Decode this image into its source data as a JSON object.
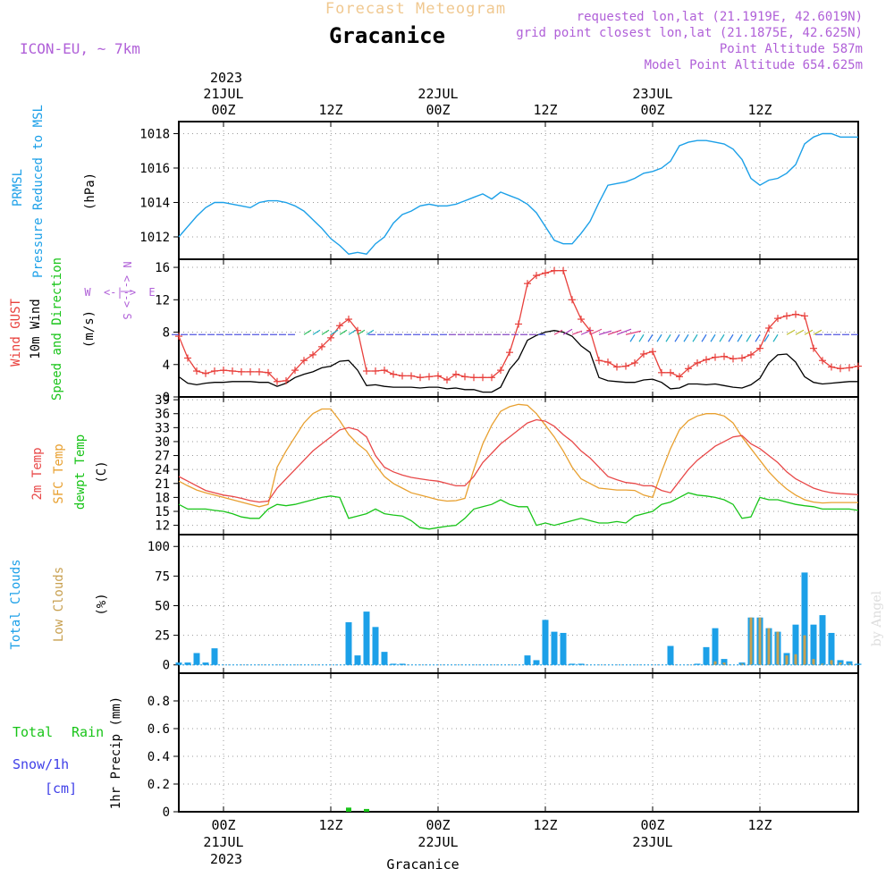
{
  "header": {
    "top_title": "Forecast Meteogram",
    "location": "Gracanice",
    "model": "ICON-EU, ~ 7km",
    "requested": "requested lon,lat (21.1919E, 42.6019N)",
    "grid_point": "grid point closest lon,lat (21.1875E, 42.625N)",
    "point_altitude": "Point Altitude 587m",
    "model_altitude": "Model Point Altitude 654.625m",
    "bottom_label": "Gracanice",
    "watermark": "by Angel"
  },
  "time_axis": {
    "top_year": "2023",
    "bottom_year": "2023",
    "ticks": [
      {
        "t": 0,
        "label": "00Z",
        "date": "21JUL"
      },
      {
        "t": 12,
        "label": "12Z",
        "date": ""
      },
      {
        "t": 24,
        "label": "00Z",
        "date": "22JUL"
      },
      {
        "t": 36,
        "label": "12Z",
        "date": ""
      },
      {
        "t": 48,
        "label": "00Z",
        "date": "23JUL"
      },
      {
        "t": 60,
        "label": "12Z",
        "date": ""
      }
    ],
    "range_hours": [
      -5,
      71
    ]
  },
  "panel_labels": {
    "pressure": [
      "PRMSL",
      "Pressure Reduced to MSL",
      "(hPa)"
    ],
    "wind": [
      "Wind GUST",
      "10m Wind",
      "Speed and Direction",
      "(m/s)"
    ],
    "compass": {
      "w": "W",
      "e": "E",
      "n": "N",
      "s": "S",
      "arrows": "<-|->"
    },
    "temp": [
      "2m Temp",
      "SFC Temp",
      "dewpt Temp",
      "(C)"
    ],
    "clouds": [
      "Total Clouds",
      "Low Clouds",
      "(%)"
    ],
    "precip": [
      "Total",
      "Rain",
      "Snow/1h",
      "[cm]",
      "1hr Precip (mm)"
    ]
  },
  "colors": {
    "pressure": "#1ca0e8",
    "gust": "#e8403c",
    "wind": "#000000",
    "temp2m": "#e84848",
    "sfc": "#e8a030",
    "dewpt": "#18c418",
    "total_clouds": "#1ca0e8",
    "low_clouds": "#c8a050",
    "rain": "#18c418",
    "snow": "#4040e8",
    "header_purple": "#b060d8",
    "header_gold": "#f0c890"
  },
  "chart_data": [
    {
      "type": "line",
      "name": "PRMSL Pressure Reduced to MSL",
      "ylabel": "(hPa)",
      "ylim": [
        1010.7,
        1018.7
      ],
      "yticks": [
        1012,
        1014,
        1016,
        1018
      ],
      "x": [
        -5,
        -4,
        -3,
        -2,
        -1,
        0,
        1,
        2,
        3,
        4,
        5,
        6,
        7,
        8,
        9,
        10,
        11,
        12,
        13,
        14,
        15,
        16,
        17,
        18,
        19,
        20,
        21,
        22,
        23,
        24,
        25,
        26,
        27,
        28,
        29,
        30,
        31,
        32,
        33,
        34,
        35,
        36,
        37,
        38,
        39,
        40,
        41,
        42,
        43,
        44,
        45,
        46,
        47,
        48,
        49,
        50,
        51,
        52,
        53,
        54,
        55,
        56,
        57,
        58,
        59,
        60,
        61,
        62,
        63,
        64,
        65,
        66,
        67,
        68,
        69,
        70,
        71
      ],
      "y": [
        1012.0,
        1012.6,
        1013.2,
        1013.7,
        1014.0,
        1014.0,
        1013.9,
        1013.8,
        1013.7,
        1014.0,
        1014.1,
        1014.1,
        1014.0,
        1013.8,
        1013.5,
        1013.0,
        1012.5,
        1011.9,
        1011.5,
        1011.0,
        1011.1,
        1011.0,
        1011.6,
        1012.0,
        1012.8,
        1013.3,
        1013.5,
        1013.8,
        1013.9,
        1013.8,
        1013.8,
        1013.9,
        1014.1,
        1014.3,
        1014.5,
        1014.2,
        1014.6,
        1014.4,
        1014.2,
        1013.9,
        1013.4,
        1012.6,
        1011.8,
        1011.6,
        1011.6,
        1012.2,
        1012.9,
        1014.0,
        1015.0,
        1015.1,
        1015.2,
        1015.4,
        1015.7,
        1015.8,
        1016.0,
        1016.4,
        1017.3,
        1017.5,
        1017.6,
        1017.6,
        1017.5,
        1017.4,
        1017.1,
        1016.5,
        1015.4,
        1015.0,
        1015.3,
        1015.4,
        1015.7,
        1016.2,
        1017.4,
        1017.8,
        1018.0,
        1018.0,
        1017.8,
        1017.8,
        1017.8
      ]
    },
    {
      "type": "line",
      "name": "Wind GUST / 10m Wind",
      "ylabel": "(m/s)",
      "ylim": [
        0,
        17
      ],
      "yticks": [
        0,
        4,
        8,
        12,
        16
      ],
      "x": [
        -5,
        -4,
        -3,
        -2,
        -1,
        0,
        1,
        2,
        3,
        4,
        5,
        6,
        7,
        8,
        9,
        10,
        11,
        12,
        13,
        14,
        15,
        16,
        17,
        18,
        19,
        20,
        21,
        22,
        23,
        24,
        25,
        26,
        27,
        28,
        29,
        30,
        31,
        32,
        33,
        34,
        35,
        36,
        37,
        38,
        39,
        40,
        41,
        42,
        43,
        44,
        45,
        46,
        47,
        48,
        49,
        50,
        51,
        52,
        53,
        54,
        55,
        56,
        57,
        58,
        59,
        60,
        61,
        62,
        63,
        64,
        65,
        66,
        67,
        68,
        69,
        70,
        71
      ],
      "series": [
        {
          "name": "Wind GUST",
          "values": [
            7.5,
            4.8,
            3.2,
            2.9,
            3.2,
            3.3,
            3.2,
            3.1,
            3.1,
            3.1,
            3.0,
            1.9,
            2.0,
            3.3,
            4.5,
            5.2,
            6.2,
            7.3,
            8.8,
            9.6,
            8.2,
            3.2,
            3.2,
            3.3,
            2.8,
            2.6,
            2.6,
            2.4,
            2.5,
            2.6,
            2.1,
            2.8,
            2.5,
            2.4,
            2.4,
            2.4,
            3.3,
            5.5,
            9.0,
            14.0,
            15.0,
            15.3,
            15.6,
            15.6,
            12.0,
            9.6,
            8.2,
            4.5,
            4.3,
            3.7,
            3.8,
            4.2,
            5.3,
            5.6,
            3.0,
            3.0,
            2.5,
            3.5,
            4.2,
            4.6,
            4.9,
            5.0,
            4.7,
            4.8,
            5.2,
            6.0,
            8.5,
            9.7,
            10.0,
            10.2,
            10.0,
            6.0,
            4.5,
            3.7,
            3.5,
            3.6,
            3.8
          ]
        },
        {
          "name": "10m Wind",
          "values": [
            2.5,
            1.7,
            1.5,
            1.7,
            1.8,
            1.8,
            1.9,
            1.9,
            1.9,
            1.8,
            1.8,
            1.3,
            1.7,
            2.4,
            2.8,
            3.1,
            3.6,
            3.8,
            4.4,
            4.5,
            3.3,
            1.4,
            1.5,
            1.3,
            1.2,
            1.2,
            1.2,
            1.1,
            1.2,
            1.2,
            1.0,
            1.1,
            0.9,
            0.9,
            0.6,
            0.6,
            1.2,
            3.4,
            4.7,
            7.0,
            7.6,
            8.0,
            8.2,
            8.0,
            7.5,
            6.3,
            5.5,
            2.4,
            2.0,
            1.9,
            1.8,
            1.8,
            2.1,
            2.2,
            1.8,
            1.0,
            1.1,
            1.6,
            1.6,
            1.5,
            1.6,
            1.4,
            1.2,
            1.1,
            1.5,
            2.3,
            4.2,
            5.2,
            5.3,
            4.3,
            2.5,
            1.8,
            1.6,
            1.7,
            1.8,
            1.9,
            1.9
          ]
        }
      ]
    },
    {
      "type": "line",
      "name": "Temperature",
      "ylabel": "(C)",
      "ylim": [
        10,
        39.6
      ],
      "yticks": [
        12,
        15,
        18,
        21,
        24,
        27,
        30,
        33,
        36,
        39
      ],
      "x": [
        -5,
        -4,
        -3,
        -2,
        -1,
        0,
        1,
        2,
        3,
        4,
        5,
        6,
        7,
        8,
        9,
        10,
        11,
        12,
        13,
        14,
        15,
        16,
        17,
        18,
        19,
        20,
        21,
        22,
        23,
        24,
        25,
        26,
        27,
        28,
        29,
        30,
        31,
        32,
        33,
        34,
        35,
        36,
        37,
        38,
        39,
        40,
        41,
        42,
        43,
        44,
        45,
        46,
        47,
        48,
        49,
        50,
        51,
        52,
        53,
        54,
        55,
        56,
        57,
        58,
        59,
        60,
        61,
        62,
        63,
        64,
        65,
        66,
        67,
        68,
        69,
        70,
        71
      ],
      "series": [
        {
          "name": "2m Temp",
          "values": [
            22.5,
            21.5,
            20.5,
            19.5,
            19.0,
            18.5,
            18.2,
            17.8,
            17.3,
            17.0,
            17.2,
            20.0,
            22.0,
            24.0,
            26.0,
            28.0,
            29.5,
            31.0,
            32.5,
            33.0,
            32.5,
            31.0,
            27.0,
            24.5,
            23.5,
            22.8,
            22.3,
            22.0,
            21.7,
            21.5,
            21.0,
            20.5,
            20.5,
            22.5,
            25.5,
            27.5,
            29.5,
            31.0,
            32.5,
            34.0,
            34.7,
            34.4,
            33.3,
            31.5,
            30.0,
            28.0,
            26.5,
            24.5,
            22.5,
            21.8,
            21.2,
            21.0,
            20.5,
            20.5,
            19.5,
            19.0,
            21.5,
            24.0,
            26.0,
            27.5,
            29.0,
            30.0,
            31.0,
            31.3,
            29.5,
            28.5,
            27.0,
            25.5,
            23.5,
            22.0,
            21.0,
            20.0,
            19.4,
            19.0,
            18.8,
            18.7,
            18.6
          ]
        },
        {
          "name": "SFC Temp",
          "values": [
            21.5,
            20.5,
            19.6,
            19.0,
            18.5,
            18.0,
            17.5,
            17.0,
            16.5,
            16.0,
            16.5,
            24.5,
            28.0,
            31.0,
            34.0,
            36.0,
            37.0,
            37.0,
            34.5,
            31.5,
            29.5,
            28.0,
            25.0,
            22.5,
            21.0,
            20.0,
            19.0,
            18.5,
            18.0,
            17.5,
            17.2,
            17.3,
            17.8,
            24.0,
            29.5,
            33.5,
            36.5,
            37.5,
            38.0,
            37.8,
            36.0,
            33.5,
            31.0,
            28.0,
            24.5,
            22.0,
            21.0,
            20.0,
            19.8,
            19.6,
            19.6,
            19.5,
            18.5,
            18.0,
            23.5,
            28.5,
            32.5,
            34.5,
            35.5,
            36.0,
            36.0,
            35.5,
            34.0,
            31.0,
            28.5,
            26.0,
            23.5,
            21.5,
            19.8,
            18.5,
            17.5,
            17.0,
            16.8,
            16.9,
            16.9,
            16.9,
            16.9
          ]
        },
        {
          "name": "dewpt Temp",
          "values": [
            16.5,
            15.5,
            15.5,
            15.5,
            15.2,
            15.0,
            14.5,
            13.8,
            13.5,
            13.5,
            15.5,
            16.5,
            16.2,
            16.5,
            17.0,
            17.5,
            18.0,
            18.3,
            18.0,
            13.5,
            14.0,
            14.5,
            15.5,
            14.5,
            14.2,
            14.0,
            13.0,
            11.5,
            11.2,
            11.5,
            11.8,
            12.0,
            13.5,
            15.5,
            16.0,
            16.5,
            17.5,
            16.5,
            16.0,
            16.0,
            12.0,
            12.5,
            12.0,
            12.5,
            13.0,
            13.5,
            13.0,
            12.5,
            12.5,
            12.8,
            12.5,
            14.0,
            14.5,
            15.0,
            16.5,
            17.0,
            18.0,
            19.0,
            18.5,
            18.3,
            18.0,
            17.5,
            16.5,
            13.5,
            13.8,
            18.0,
            17.5,
            17.5,
            17.0,
            16.5,
            16.2,
            16.0,
            15.5,
            15.5,
            15.5,
            15.5,
            15.2
          ]
        }
      ]
    },
    {
      "type": "bar",
      "name": "Clouds",
      "ylabel": "(%)",
      "ylim": [
        -7,
        110
      ],
      "yticks": [
        0,
        25,
        50,
        75,
        100
      ],
      "series": [
        {
          "name": "Total Clouds",
          "x": [
            -5,
            -4,
            -3,
            -2,
            -1,
            14,
            15,
            16,
            17,
            18,
            19,
            20,
            34,
            35,
            36,
            37,
            38,
            39,
            40,
            50,
            53,
            54,
            55,
            56,
            58,
            59,
            60,
            61,
            62,
            63,
            64,
            65,
            66,
            67,
            68,
            69,
            70,
            71
          ],
          "values": [
            2,
            2,
            10,
            2,
            14,
            36,
            8,
            45,
            32,
            11,
            1,
            1,
            8,
            4,
            38,
            28,
            27,
            1,
            1,
            16,
            1,
            15,
            31,
            5,
            2,
            40,
            40,
            31,
            28,
            10,
            34,
            78,
            34,
            42,
            27,
            4,
            3,
            1
          ]
        },
        {
          "name": "Low Clouds",
          "x": [
            55,
            56,
            58,
            59,
            60,
            61,
            62,
            63,
            64,
            65,
            66,
            67,
            68,
            69,
            70
          ],
          "values": [
            3,
            2,
            1,
            40,
            40,
            31,
            28,
            8,
            9,
            25,
            5,
            1,
            4,
            2,
            1
          ]
        }
      ]
    },
    {
      "type": "bar",
      "name": "1hr Precip",
      "ylabel": "1hr Precip (mm)",
      "ylim": [
        0,
        1.0
      ],
      "yticks": [
        0,
        0.2,
        0.4,
        0.6,
        0.8
      ],
      "series": [
        {
          "name": "Rain",
          "x": [
            14,
            16
          ],
          "values": [
            0.03,
            0.02
          ]
        }
      ]
    }
  ]
}
